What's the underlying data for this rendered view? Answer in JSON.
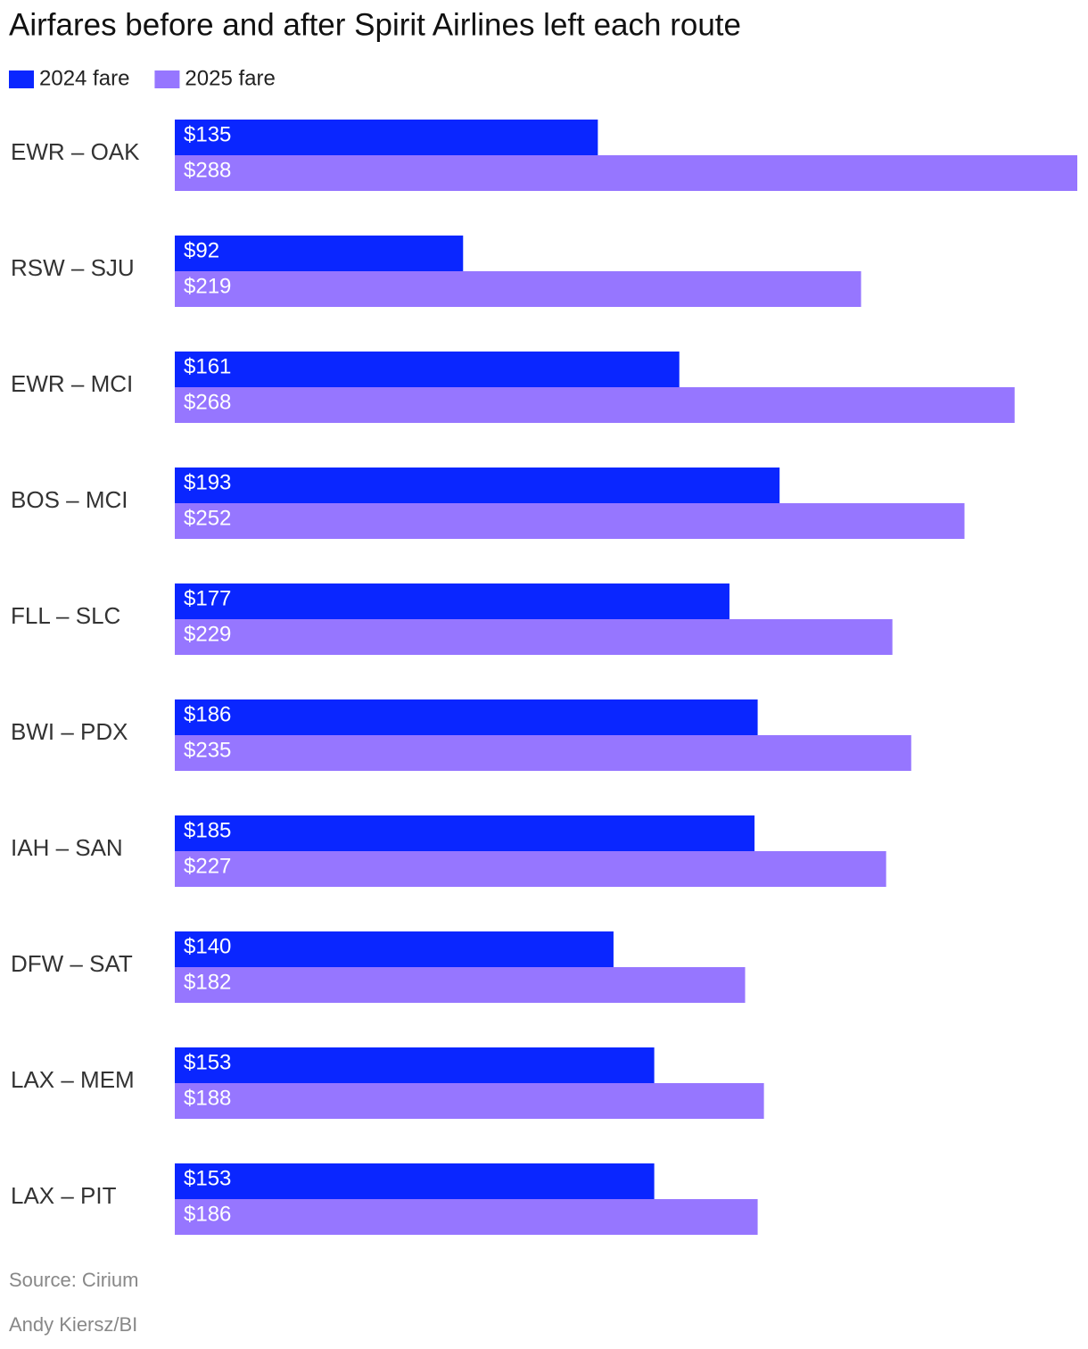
{
  "chart_data": {
    "type": "bar",
    "orientation": "horizontal",
    "title": "Airfares before and after Spirit Airlines left each route",
    "categories": [
      "EWR – OAK",
      "RSW – SJU",
      "EWR – MCI",
      "BOS – MCI",
      "FLL – SLC",
      "BWI – PDX",
      "IAH – SAN",
      "DFW – SAT",
      "LAX – MEM",
      "LAX – PIT"
    ],
    "series": [
      {
        "name": "2024 fare",
        "color": "#0a26ff",
        "values": [
          135,
          92,
          161,
          193,
          177,
          186,
          185,
          140,
          153,
          153
        ],
        "value_labels": [
          "$135",
          "$92",
          "$161",
          "$193",
          "$177",
          "$186",
          "$185",
          "$140",
          "$153",
          "$153"
        ]
      },
      {
        "name": "2025 fare",
        "color": "#9676ff",
        "values": [
          288,
          219,
          268,
          252,
          229,
          235,
          227,
          182,
          188,
          186
        ],
        "value_labels": [
          "$288",
          "$219",
          "$268",
          "$252",
          "$229",
          "$235",
          "$227",
          "$182",
          "$188",
          "$186"
        ]
      }
    ],
    "source": "Source: Cirium",
    "credit": "Andy Kiersz/BI"
  }
}
